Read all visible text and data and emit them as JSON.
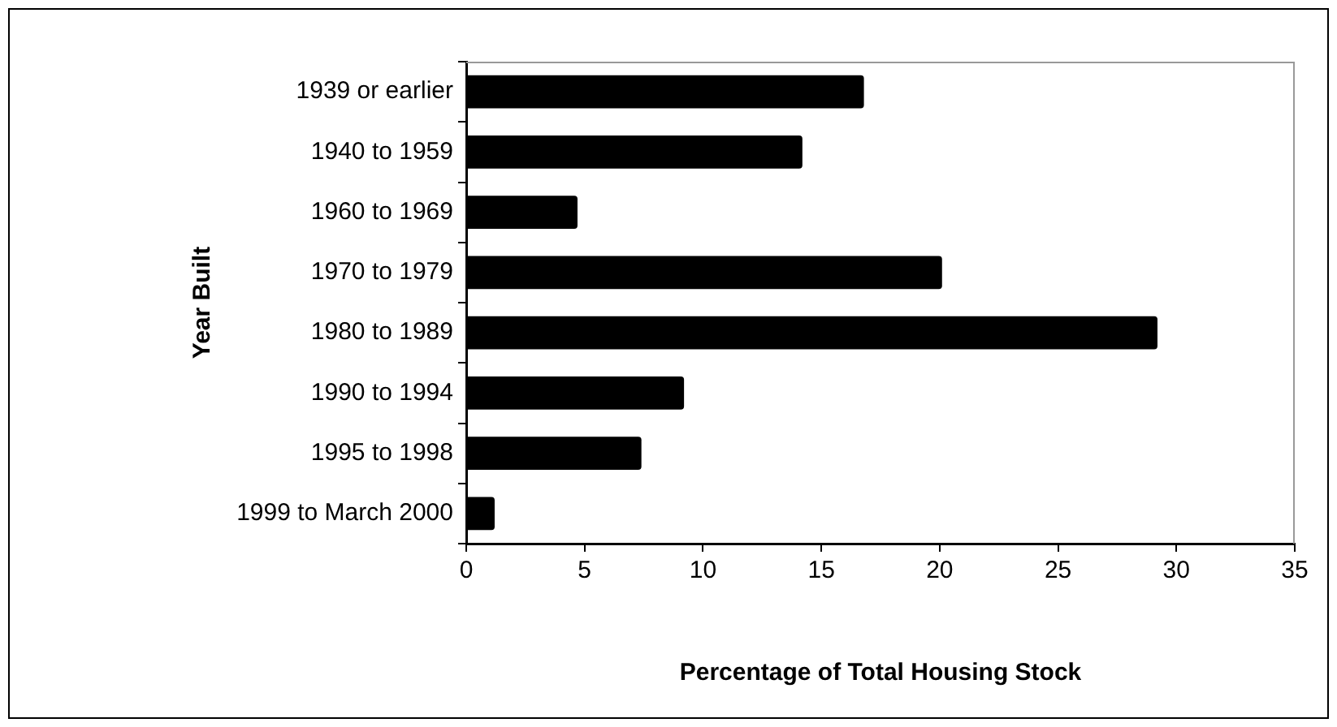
{
  "chart_data": {
    "type": "bar",
    "orientation": "horizontal",
    "xlabel": "Percentage of Total Housing Stock",
    "ylabel": "Year Built",
    "categories": [
      "1939 or earlier",
      "1940 to 1959",
      "1960 to 1969",
      "1970 to 1979",
      "1980 to 1989",
      "1990 to 1994",
      "1995 to 1998",
      "1999 to March 2000"
    ],
    "values": [
      16.8,
      14.2,
      4.7,
      20.1,
      29.2,
      9.2,
      7.4,
      1.2
    ],
    "color": "#000000",
    "xlim": [
      0,
      35
    ],
    "xticks": [
      0,
      5,
      10,
      15,
      20,
      25,
      30,
      35
    ],
    "grid": false,
    "legend": false
  }
}
